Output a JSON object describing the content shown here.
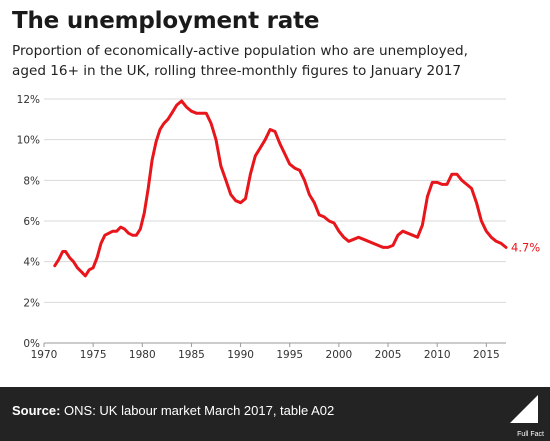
{
  "header": {
    "title": "The unemployment rate",
    "subtitle_line1": "Proportion of economically-active population who are unemployed,",
    "subtitle_line2": "aged 16+ in the UK, rolling three-monthly figures to January 2017"
  },
  "footer": {
    "source_label": "Source:",
    "source_text": " ONS: UK labour market March 2017, table A02",
    "logo_text": "Full Fact"
  },
  "colors": {
    "line": "#e8151b",
    "footer_bg": "#232323"
  },
  "chart_data": {
    "type": "line",
    "xlim": [
      1970,
      2017
    ],
    "ylim": [
      0,
      12
    ],
    "x_ticks": [
      1970,
      1975,
      1980,
      1985,
      1990,
      1995,
      2000,
      2005,
      2010,
      2015
    ],
    "x_tick_labels": [
      "1970",
      "1975",
      "1980",
      "1985",
      "1990",
      "1995",
      "2000",
      "2005",
      "2010",
      "2015"
    ],
    "y_ticks": [
      0,
      2,
      4,
      6,
      8,
      10,
      12
    ],
    "y_tick_labels": [
      "0%",
      "2%",
      "4%",
      "6%",
      "8%",
      "10%",
      "12%"
    ],
    "grid": "horizontal",
    "end_label": "4.7%",
    "series": [
      {
        "x": [
          1971.1,
          1971.5,
          1971.9,
          1972.2,
          1972.6,
          1973.0,
          1973.4,
          1973.8,
          1974.2,
          1974.6,
          1975.0,
          1975.4,
          1975.8,
          1976.2,
          1976.6,
          1977.0,
          1977.4,
          1977.8,
          1978.2,
          1978.6,
          1979.0,
          1979.4,
          1979.8,
          1980.2,
          1980.6,
          1981.0,
          1981.4,
          1981.8,
          1982.2,
          1982.6,
          1983.0,
          1983.5,
          1984.0,
          1984.5,
          1985.0,
          1985.5,
          1986.0,
          1986.5,
          1987.0,
          1987.5,
          1988.0,
          1988.5,
          1989.0,
          1989.5,
          1990.0,
          1990.5,
          1991.0,
          1991.5,
          1992.0,
          1992.5,
          1993.0,
          1993.5,
          1994.0,
          1994.5,
          1995.0,
          1995.5,
          1996.0,
          1996.5,
          1997.0,
          1997.5,
          1998.0,
          1998.5,
          1999.0,
          1999.5,
          2000.0,
          2000.5,
          2001.0,
          2001.5,
          2002.0,
          2002.5,
          2003.0,
          2003.5,
          2004.0,
          2004.5,
          2005.0,
          2005.5,
          2006.0,
          2006.5,
          2007.0,
          2007.5,
          2008.0,
          2008.5,
          2009.0,
          2009.5,
          2010.0,
          2010.5,
          2011.0,
          2011.5,
          2012.0,
          2012.5,
          2013.0,
          2013.5,
          2014.0,
          2014.5,
          2015.0,
          2015.5,
          2016.0,
          2016.5,
          2017.0
        ],
        "y": [
          3.8,
          4.1,
          4.5,
          4.5,
          4.2,
          4.0,
          3.7,
          3.5,
          3.3,
          3.6,
          3.7,
          4.2,
          4.9,
          5.3,
          5.4,
          5.5,
          5.5,
          5.7,
          5.6,
          5.4,
          5.3,
          5.3,
          5.6,
          6.4,
          7.6,
          9.0,
          9.9,
          10.5,
          10.8,
          11.0,
          11.3,
          11.7,
          11.9,
          11.6,
          11.4,
          11.3,
          11.3,
          11.3,
          10.8,
          10.0,
          8.7,
          8.0,
          7.3,
          7.0,
          6.9,
          7.1,
          8.3,
          9.2,
          9.6,
          10.0,
          10.5,
          10.4,
          9.8,
          9.3,
          8.8,
          8.6,
          8.5,
          8.0,
          7.3,
          6.9,
          6.3,
          6.2,
          6.0,
          5.9,
          5.5,
          5.2,
          5.0,
          5.1,
          5.2,
          5.1,
          5.0,
          4.9,
          4.8,
          4.7,
          4.7,
          4.8,
          5.3,
          5.5,
          5.4,
          5.3,
          5.2,
          5.8,
          7.2,
          7.9,
          7.9,
          7.8,
          7.8,
          8.3,
          8.3,
          8.0,
          7.8,
          7.6,
          6.9,
          6.0,
          5.5,
          5.2,
          5.0,
          4.9,
          4.7
        ]
      }
    ]
  }
}
